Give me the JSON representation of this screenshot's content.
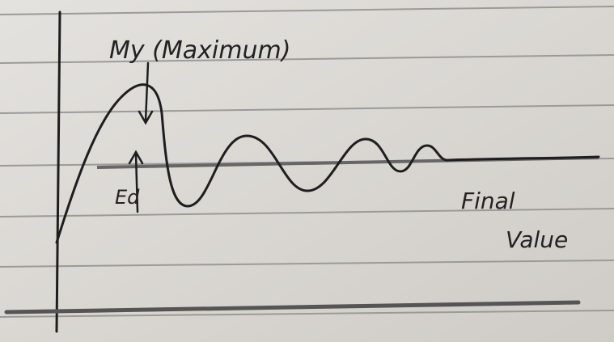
{
  "annotations": {
    "peak_label": "My (Maximum)",
    "error_label": "Ed",
    "final_label_line1": "Final",
    "final_label_line2": "Value"
  }
}
